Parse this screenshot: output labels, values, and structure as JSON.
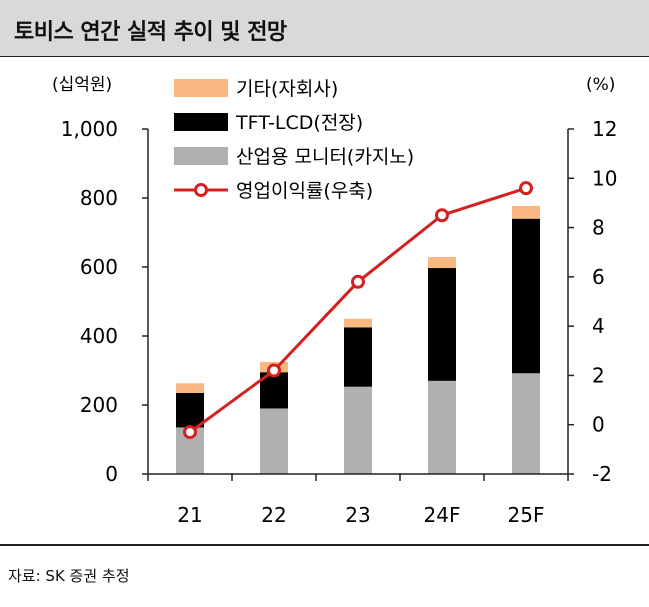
{
  "title": "토비스 연간 실적 추이 및 전망",
  "source": "자료: SK 증권 추정",
  "chart_data": {
    "type": "bar",
    "stacked": true,
    "y_unit_left": "(십억원)",
    "y_unit_right": "(%)",
    "categories": [
      "21",
      "22",
      "23",
      "24F",
      "25F"
    ],
    "ylim": [
      0,
      1000
    ],
    "yticks": [
      0,
      200,
      400,
      600,
      800,
      1000
    ],
    "ytick_labels": [
      "0",
      "200",
      "400",
      "600",
      "800",
      "1,000"
    ],
    "y2lim": [
      -2,
      12
    ],
    "y2ticks": [
      -2,
      0,
      2,
      4,
      6,
      8,
      10,
      12
    ],
    "series": [
      {
        "name": "산업용 모니터(카지노)",
        "kind": "bar",
        "color": "#b0b0b0",
        "values": [
          135,
          190,
          253,
          270,
          292
        ]
      },
      {
        "name": "TFT-LCD(전장)",
        "kind": "bar",
        "color": "#000000",
        "values": [
          100,
          105,
          172,
          327,
          448
        ]
      },
      {
        "name": "기타(자회사)",
        "kind": "bar",
        "color": "#f9b882",
        "values": [
          28,
          30,
          25,
          32,
          37
        ]
      },
      {
        "name": "영업이익률(우축)",
        "kind": "line",
        "axis": "right",
        "color": "#d42020",
        "values": [
          -0.3,
          2.2,
          5.8,
          8.5,
          9.6
        ]
      }
    ],
    "legend_order": [
      2,
      1,
      0,
      3
    ],
    "legend_position": "top-left"
  }
}
